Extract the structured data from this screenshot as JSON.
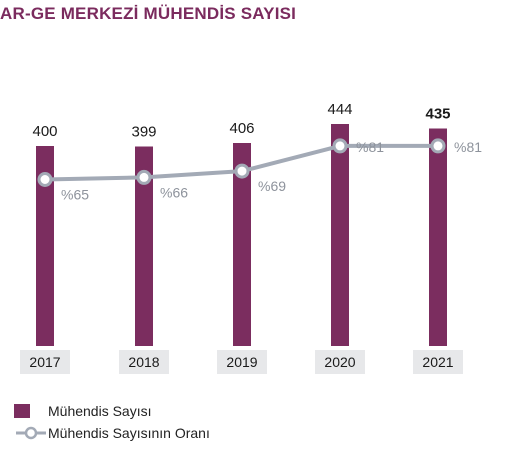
{
  "title": "AR-GE MERKEZİ MÜHENDİS SAYISI",
  "colors": {
    "bar": "#7b2d5f",
    "line": "#a3aab6",
    "year_box": "#e7e8ea",
    "value_text": "#1a1a1a",
    "pct_text": "#8e939c"
  },
  "legend": {
    "bar_label": "Mühendis Sayısı",
    "line_label": "Mühendis Sayısının Oranı"
  },
  "chart_data": {
    "type": "bar",
    "categories": [
      "2017",
      "2018",
      "2019",
      "2020",
      "2021"
    ],
    "series": [
      {
        "name": "Mühendis Sayısı",
        "type": "bar",
        "values": [
          400,
          399,
          406,
          444,
          435
        ],
        "labels": [
          "400",
          "399",
          "406",
          "444",
          "435"
        ]
      },
      {
        "name": "Mühendis Sayısının Oranı",
        "type": "line",
        "values": [
          65,
          66,
          69,
          81,
          81
        ],
        "labels": [
          "%65",
          "%66",
          "%69",
          "%81",
          "%81"
        ]
      }
    ],
    "legend_position": "bottom-left",
    "grid": false
  }
}
